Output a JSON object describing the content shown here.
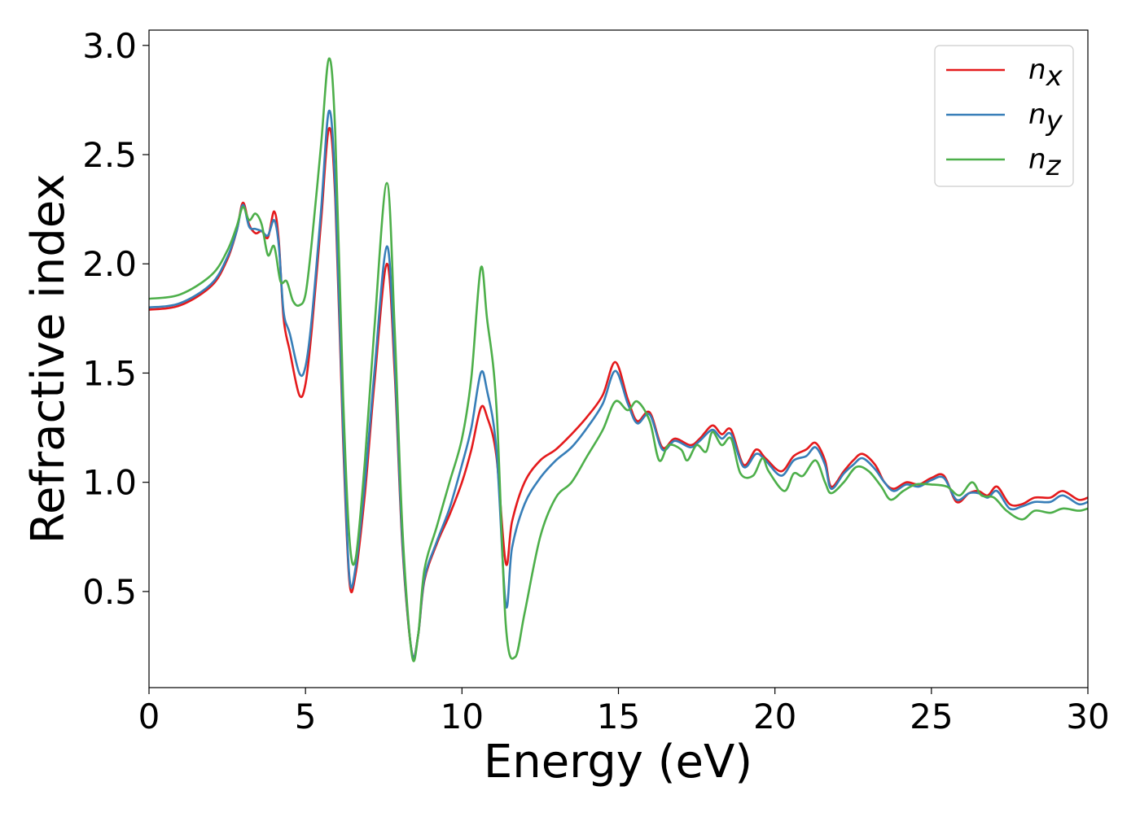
{
  "chart_data": {
    "type": "line",
    "xlabel": "Energy (eV)",
    "ylabel": "Refractive index",
    "xlim": [
      0,
      30
    ],
    "ylim": [
      0.06,
      3.07
    ],
    "x_ticks": [
      "0",
      "5",
      "10",
      "15",
      "20",
      "25",
      "30"
    ],
    "y_ticks": [
      "0.5",
      "1.0",
      "1.5",
      "2.0",
      "2.5",
      "3.0"
    ],
    "legend_position": "top-right",
    "grid": false,
    "series": [
      {
        "name": "n",
        "subscript": "x",
        "color": "#e41a1c",
        "points": [
          [
            0,
            1.79
          ],
          [
            1,
            1.81
          ],
          [
            2,
            1.9
          ],
          [
            2.5,
            2.02
          ],
          [
            2.8,
            2.15
          ],
          [
            3.0,
            2.28
          ],
          [
            3.2,
            2.18
          ],
          [
            3.4,
            2.14
          ],
          [
            3.6,
            2.15
          ],
          [
            3.8,
            2.12
          ],
          [
            4.0,
            2.24
          ],
          [
            4.15,
            2.1
          ],
          [
            4.3,
            1.75
          ],
          [
            4.5,
            1.6
          ],
          [
            4.8,
            1.4
          ],
          [
            5.0,
            1.45
          ],
          [
            5.2,
            1.7
          ],
          [
            5.5,
            2.2
          ],
          [
            5.75,
            2.62
          ],
          [
            5.95,
            2.3
          ],
          [
            6.2,
            1.2
          ],
          [
            6.4,
            0.55
          ],
          [
            6.6,
            0.58
          ],
          [
            6.9,
            0.95
          ],
          [
            7.2,
            1.45
          ],
          [
            7.6,
            2.0
          ],
          [
            7.85,
            1.5
          ],
          [
            8.1,
            0.7
          ],
          [
            8.4,
            0.22
          ],
          [
            8.6,
            0.3
          ],
          [
            8.8,
            0.55
          ],
          [
            9.2,
            0.72
          ],
          [
            9.6,
            0.85
          ],
          [
            10.0,
            1.0
          ],
          [
            10.3,
            1.15
          ],
          [
            10.6,
            1.34
          ],
          [
            10.8,
            1.3
          ],
          [
            11.1,
            1.12
          ],
          [
            11.4,
            0.63
          ],
          [
            11.6,
            0.82
          ],
          [
            12.0,
            1.0
          ],
          [
            12.5,
            1.1
          ],
          [
            13.0,
            1.15
          ],
          [
            13.5,
            1.22
          ],
          [
            14.0,
            1.3
          ],
          [
            14.5,
            1.4
          ],
          [
            14.9,
            1.55
          ],
          [
            15.3,
            1.38
          ],
          [
            15.6,
            1.28
          ],
          [
            16.0,
            1.32
          ],
          [
            16.4,
            1.16
          ],
          [
            16.8,
            1.2
          ],
          [
            17.3,
            1.17
          ],
          [
            17.6,
            1.2
          ],
          [
            18.0,
            1.26
          ],
          [
            18.3,
            1.22
          ],
          [
            18.6,
            1.24
          ],
          [
            19.0,
            1.08
          ],
          [
            19.4,
            1.15
          ],
          [
            19.7,
            1.11
          ],
          [
            20.2,
            1.05
          ],
          [
            20.6,
            1.12
          ],
          [
            21.0,
            1.15
          ],
          [
            21.3,
            1.18
          ],
          [
            21.6,
            1.1
          ],
          [
            21.8,
            0.98
          ],
          [
            22.2,
            1.05
          ],
          [
            22.5,
            1.1
          ],
          [
            22.8,
            1.13
          ],
          [
            23.2,
            1.08
          ],
          [
            23.5,
            1.0
          ],
          [
            23.8,
            0.97
          ],
          [
            24.2,
            1.0
          ],
          [
            24.6,
            0.99
          ],
          [
            25.0,
            1.02
          ],
          [
            25.4,
            1.03
          ],
          [
            25.8,
            0.91
          ],
          [
            26.2,
            0.95
          ],
          [
            26.5,
            0.96
          ],
          [
            26.8,
            0.94
          ],
          [
            27.1,
            0.98
          ],
          [
            27.5,
            0.9
          ],
          [
            27.9,
            0.9
          ],
          [
            28.3,
            0.93
          ],
          [
            28.8,
            0.93
          ],
          [
            29.2,
            0.96
          ],
          [
            29.7,
            0.92
          ],
          [
            30,
            0.93
          ]
        ]
      },
      {
        "name": "n",
        "subscript": "y",
        "color": "#377eb8",
        "points": [
          [
            0,
            1.8
          ],
          [
            1,
            1.82
          ],
          [
            2,
            1.91
          ],
          [
            2.5,
            2.03
          ],
          [
            2.8,
            2.15
          ],
          [
            3.0,
            2.27
          ],
          [
            3.2,
            2.17
          ],
          [
            3.4,
            2.16
          ],
          [
            3.6,
            2.15
          ],
          [
            3.8,
            2.13
          ],
          [
            4.0,
            2.2
          ],
          [
            4.15,
            2.08
          ],
          [
            4.3,
            1.78
          ],
          [
            4.5,
            1.68
          ],
          [
            4.8,
            1.5
          ],
          [
            5.0,
            1.53
          ],
          [
            5.2,
            1.75
          ],
          [
            5.5,
            2.25
          ],
          [
            5.75,
            2.7
          ],
          [
            5.95,
            2.35
          ],
          [
            6.2,
            1.25
          ],
          [
            6.4,
            0.57
          ],
          [
            6.6,
            0.61
          ],
          [
            6.9,
            1.0
          ],
          [
            7.2,
            1.5
          ],
          [
            7.6,
            2.08
          ],
          [
            7.85,
            1.55
          ],
          [
            8.1,
            0.72
          ],
          [
            8.4,
            0.22
          ],
          [
            8.6,
            0.3
          ],
          [
            8.8,
            0.56
          ],
          [
            9.2,
            0.73
          ],
          [
            9.6,
            0.88
          ],
          [
            10.0,
            1.08
          ],
          [
            10.3,
            1.25
          ],
          [
            10.6,
            1.5
          ],
          [
            10.8,
            1.42
          ],
          [
            11.1,
            1.15
          ],
          [
            11.4,
            0.44
          ],
          [
            11.6,
            0.7
          ],
          [
            12.0,
            0.9
          ],
          [
            12.5,
            1.02
          ],
          [
            13.0,
            1.1
          ],
          [
            13.5,
            1.16
          ],
          [
            14.0,
            1.25
          ],
          [
            14.5,
            1.36
          ],
          [
            14.9,
            1.51
          ],
          [
            15.3,
            1.36
          ],
          [
            15.6,
            1.27
          ],
          [
            16.0,
            1.31
          ],
          [
            16.4,
            1.15
          ],
          [
            16.8,
            1.19
          ],
          [
            17.3,
            1.16
          ],
          [
            17.6,
            1.19
          ],
          [
            18.0,
            1.24
          ],
          [
            18.3,
            1.2
          ],
          [
            18.6,
            1.22
          ],
          [
            19.0,
            1.07
          ],
          [
            19.4,
            1.13
          ],
          [
            19.7,
            1.1
          ],
          [
            20.2,
            1.03
          ],
          [
            20.6,
            1.1
          ],
          [
            21.0,
            1.12
          ],
          [
            21.3,
            1.16
          ],
          [
            21.6,
            1.08
          ],
          [
            21.8,
            0.97
          ],
          [
            22.2,
            1.04
          ],
          [
            22.5,
            1.08
          ],
          [
            22.8,
            1.11
          ],
          [
            23.2,
            1.06
          ],
          [
            23.5,
            1.0
          ],
          [
            23.8,
            0.96
          ],
          [
            24.2,
            0.99
          ],
          [
            24.6,
            0.98
          ],
          [
            25.0,
            1.01
          ],
          [
            25.4,
            1.02
          ],
          [
            25.8,
            0.92
          ],
          [
            26.2,
            0.95
          ],
          [
            26.5,
            0.95
          ],
          [
            26.8,
            0.93
          ],
          [
            27.1,
            0.96
          ],
          [
            27.5,
            0.88
          ],
          [
            27.9,
            0.89
          ],
          [
            28.3,
            0.91
          ],
          [
            28.8,
            0.91
          ],
          [
            29.2,
            0.94
          ],
          [
            29.7,
            0.9
          ],
          [
            30,
            0.91
          ]
        ]
      },
      {
        "name": "n",
        "subscript": "z",
        "color": "#4daf4a",
        "points": [
          [
            0,
            1.84
          ],
          [
            1,
            1.86
          ],
          [
            2,
            1.95
          ],
          [
            2.5,
            2.06
          ],
          [
            2.8,
            2.17
          ],
          [
            3.0,
            2.26
          ],
          [
            3.2,
            2.2
          ],
          [
            3.4,
            2.23
          ],
          [
            3.6,
            2.18
          ],
          [
            3.8,
            2.04
          ],
          [
            4.0,
            2.08
          ],
          [
            4.2,
            1.92
          ],
          [
            4.4,
            1.92
          ],
          [
            4.6,
            1.83
          ],
          [
            4.8,
            1.81
          ],
          [
            5.0,
            1.86
          ],
          [
            5.2,
            2.1
          ],
          [
            5.5,
            2.55
          ],
          [
            5.75,
            2.94
          ],
          [
            5.95,
            2.6
          ],
          [
            6.2,
            1.4
          ],
          [
            6.4,
            0.75
          ],
          [
            6.6,
            0.65
          ],
          [
            6.9,
            1.1
          ],
          [
            7.2,
            1.7
          ],
          [
            7.6,
            2.37
          ],
          [
            7.85,
            1.7
          ],
          [
            8.1,
            0.78
          ],
          [
            8.4,
            0.21
          ],
          [
            8.6,
            0.3
          ],
          [
            8.8,
            0.6
          ],
          [
            9.2,
            0.8
          ],
          [
            9.6,
            1.0
          ],
          [
            10.0,
            1.2
          ],
          [
            10.3,
            1.48
          ],
          [
            10.6,
            1.98
          ],
          [
            10.8,
            1.75
          ],
          [
            11.1,
            1.35
          ],
          [
            11.4,
            0.35
          ],
          [
            11.7,
            0.2
          ],
          [
            12.0,
            0.4
          ],
          [
            12.5,
            0.75
          ],
          [
            13.0,
            0.93
          ],
          [
            13.5,
            1.0
          ],
          [
            14.0,
            1.12
          ],
          [
            14.5,
            1.24
          ],
          [
            14.9,
            1.37
          ],
          [
            15.3,
            1.33
          ],
          [
            15.6,
            1.37
          ],
          [
            16.0,
            1.28
          ],
          [
            16.3,
            1.1
          ],
          [
            16.6,
            1.17
          ],
          [
            17.0,
            1.15
          ],
          [
            17.2,
            1.1
          ],
          [
            17.5,
            1.17
          ],
          [
            17.8,
            1.14
          ],
          [
            18.0,
            1.23
          ],
          [
            18.3,
            1.17
          ],
          [
            18.6,
            1.2
          ],
          [
            18.9,
            1.04
          ],
          [
            19.3,
            1.03
          ],
          [
            19.6,
            1.11
          ],
          [
            19.8,
            1.05
          ],
          [
            20.3,
            0.96
          ],
          [
            20.6,
            1.04
          ],
          [
            20.9,
            1.03
          ],
          [
            21.3,
            1.1
          ],
          [
            21.6,
            1.0
          ],
          [
            21.8,
            0.95
          ],
          [
            22.2,
            1.0
          ],
          [
            22.6,
            1.07
          ],
          [
            23.0,
            1.05
          ],
          [
            23.4,
            0.98
          ],
          [
            23.7,
            0.92
          ],
          [
            24.1,
            0.96
          ],
          [
            24.5,
            0.99
          ],
          [
            25.0,
            0.99
          ],
          [
            25.5,
            0.98
          ],
          [
            25.9,
            0.94
          ],
          [
            26.3,
            1.0
          ],
          [
            26.6,
            0.94
          ],
          [
            27.0,
            0.93
          ],
          [
            27.4,
            0.87
          ],
          [
            27.9,
            0.83
          ],
          [
            28.3,
            0.87
          ],
          [
            28.8,
            0.86
          ],
          [
            29.2,
            0.88
          ],
          [
            29.7,
            0.87
          ],
          [
            30,
            0.88
          ]
        ]
      }
    ]
  }
}
